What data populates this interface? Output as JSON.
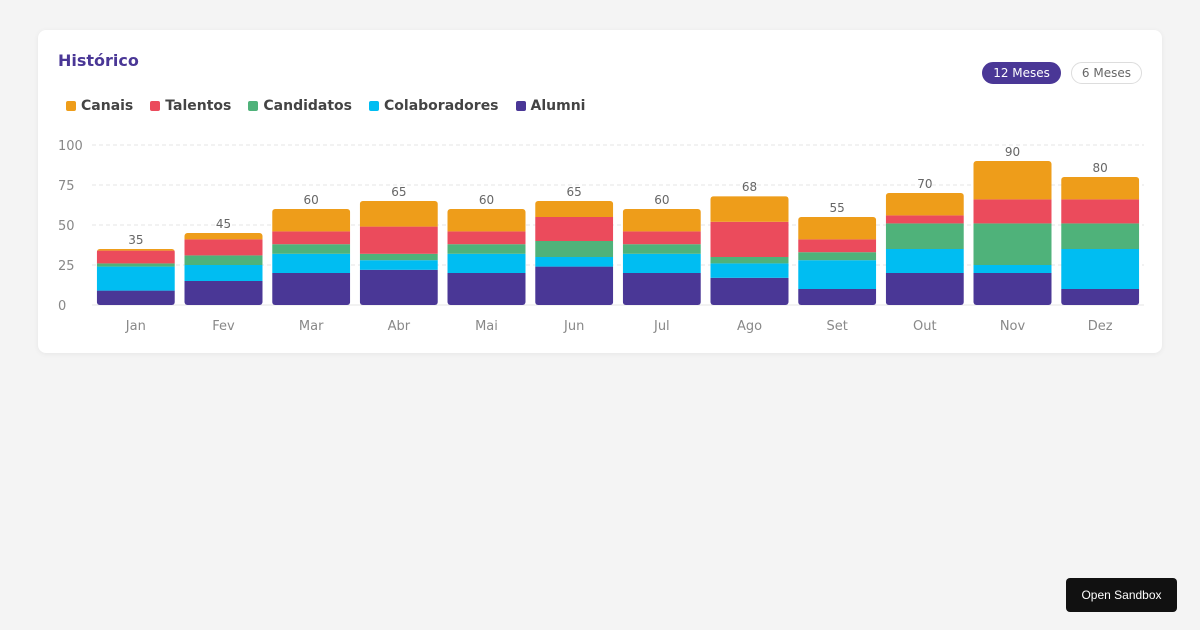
{
  "card": {
    "title": "Histórico"
  },
  "range_toggle": {
    "options": [
      {
        "label": "12 Meses",
        "active": true
      },
      {
        "label": "6 Meses",
        "active": false
      }
    ]
  },
  "sandbox_button": {
    "label": "Open Sandbox"
  },
  "colors": {
    "accent": "#4a3796",
    "Canais": "#ee9d1a",
    "Talentos": "#eb4b5c",
    "Candidatos": "#4fb27a",
    "Colaboradores": "#00bdf2",
    "Alumni": "#4a3796"
  },
  "chart_data": {
    "type": "bar",
    "stacked": true,
    "categories": [
      "Jan",
      "Fev",
      "Mar",
      "Abr",
      "Mai",
      "Jun",
      "Jul",
      "Ago",
      "Set",
      "Out",
      "Nov",
      "Dez"
    ],
    "series": [
      {
        "name": "Alumni",
        "color": "#4a3796",
        "values": [
          9,
          15,
          20,
          22,
          20,
          24,
          20,
          17,
          10,
          20,
          20,
          10
        ]
      },
      {
        "name": "Colaboradores",
        "color": "#00bdf2",
        "values": [
          15,
          10,
          12,
          6,
          12,
          6,
          12,
          9,
          18,
          15,
          5,
          25
        ]
      },
      {
        "name": "Candidatos",
        "color": "#4fb27a",
        "values": [
          2,
          6,
          6,
          4,
          6,
          10,
          6,
          4,
          5,
          16,
          26,
          16
        ]
      },
      {
        "name": "Talentos",
        "color": "#eb4b5c",
        "values": [
          8,
          10,
          8,
          17,
          8,
          15,
          8,
          22,
          8,
          5,
          15,
          15
        ]
      },
      {
        "name": "Canais",
        "color": "#ee9d1a",
        "values": [
          1,
          4,
          14,
          16,
          14,
          10,
          14,
          16,
          14,
          14,
          24,
          14
        ]
      }
    ],
    "totals": [
      35,
      45,
      60,
      65,
      60,
      65,
      60,
      68,
      55,
      70,
      90,
      80
    ],
    "legend_order": [
      "Canais",
      "Talentos",
      "Candidatos",
      "Colaboradores",
      "Alumni"
    ],
    "yticks": [
      0,
      25,
      50,
      75,
      100
    ],
    "ylim": [
      0,
      100
    ],
    "grid": true,
    "legend_position": "top-left"
  }
}
